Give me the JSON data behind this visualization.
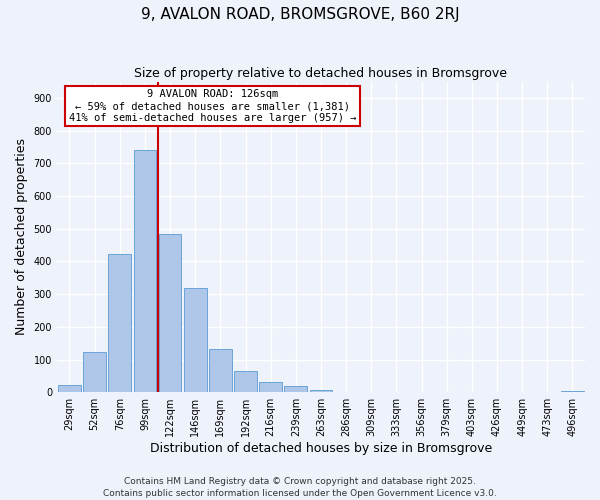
{
  "title": "9, AVALON ROAD, BROMSGROVE, B60 2RJ",
  "subtitle": "Size of property relative to detached houses in Bromsgrove",
  "xlabel": "Distribution of detached houses by size in Bromsgrove",
  "ylabel": "Number of detached properties",
  "bin_labels": [
    "29sqm",
    "52sqm",
    "76sqm",
    "99sqm",
    "122sqm",
    "146sqm",
    "169sqm",
    "192sqm",
    "216sqm",
    "239sqm",
    "263sqm",
    "286sqm",
    "309sqm",
    "333sqm",
    "356sqm",
    "379sqm",
    "403sqm",
    "426sqm",
    "449sqm",
    "473sqm",
    "496sqm"
  ],
  "bar_values": [
    22,
    122,
    422,
    740,
    485,
    318,
    133,
    65,
    32,
    18,
    8,
    0,
    0,
    0,
    0,
    0,
    0,
    0,
    0,
    0,
    5
  ],
  "bar_color": "#aec6e8",
  "bar_edge_color": "#5b9bd5",
  "marker_label_line1": "9 AVALON ROAD: 126sqm",
  "marker_label_line2": "← 59% of detached houses are smaller (1,381)",
  "marker_label_line3": "41% of semi-detached houses are larger (957) →",
  "marker_color": "#cc0000",
  "box_edge_color": "#cc0000",
  "ylim": [
    0,
    950
  ],
  "yticks": [
    0,
    100,
    200,
    300,
    400,
    500,
    600,
    700,
    800,
    900
  ],
  "footer1": "Contains HM Land Registry data © Crown copyright and database right 2025.",
  "footer2": "Contains public sector information licensed under the Open Government Licence v3.0.",
  "bg_color": "#eef2fb",
  "plot_bg_color": "#eef2fb",
  "title_fontsize": 11,
  "subtitle_fontsize": 9,
  "axis_label_fontsize": 9,
  "tick_fontsize": 7,
  "footer_fontsize": 6.5,
  "annotation_fontsize": 7.5
}
